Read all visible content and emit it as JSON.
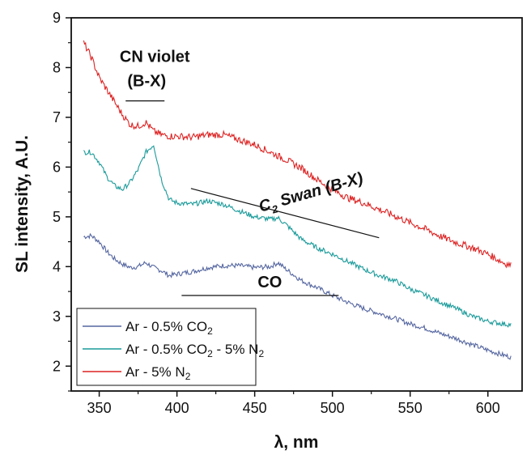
{
  "chart_data": {
    "type": "line",
    "xlabel": "λ, nm",
    "ylabel": "SL intensity, A.U.",
    "xlim": [
      332,
      622
    ],
    "ylim": [
      1.5,
      9
    ],
    "x_ticks": [
      350,
      400,
      450,
      500,
      550,
      600
    ],
    "y_ticks": [
      2,
      3,
      4,
      5,
      6,
      7,
      8,
      9
    ],
    "grid": false,
    "legend_position": "bottom-left",
    "series": [
      {
        "name_parts": [
          "Ar - 0.5% CO",
          "2",
          ""
        ],
        "color": "#5566a0",
        "x": [
          340,
          345,
          350,
          355,
          360,
          365,
          370,
          375,
          380,
          385,
          390,
          395,
          400,
          410,
          420,
          430,
          440,
          450,
          460,
          465,
          470,
          480,
          490,
          500,
          510,
          520,
          530,
          540,
          550,
          560,
          570,
          580,
          590,
          600,
          610,
          615
        ],
        "y": [
          4.6,
          4.62,
          4.5,
          4.3,
          4.15,
          4.05,
          3.98,
          4.0,
          4.08,
          3.98,
          3.92,
          3.82,
          3.85,
          3.9,
          3.98,
          4.02,
          4.02,
          3.98,
          4.0,
          4.08,
          3.95,
          3.72,
          3.58,
          3.42,
          3.28,
          3.16,
          3.06,
          2.96,
          2.85,
          2.76,
          2.65,
          2.55,
          2.43,
          2.32,
          2.22,
          2.18
        ]
      },
      {
        "name_parts": [
          "Ar - 0.5% CO",
          "2",
          " - 5% N",
          "2",
          ""
        ],
        "color": "#1a9a9a",
        "x": [
          340,
          345,
          350,
          355,
          360,
          365,
          370,
          375,
          380,
          385,
          390,
          395,
          400,
          410,
          420,
          430,
          440,
          450,
          460,
          465,
          470,
          480,
          490,
          500,
          510,
          520,
          530,
          540,
          550,
          560,
          570,
          580,
          590,
          600,
          610,
          615
        ],
        "y": [
          6.3,
          6.3,
          6.1,
          5.8,
          5.62,
          5.55,
          5.7,
          5.95,
          6.3,
          6.45,
          5.75,
          5.35,
          5.28,
          5.25,
          5.32,
          5.25,
          5.12,
          5.0,
          4.95,
          4.98,
          4.85,
          4.55,
          4.38,
          4.25,
          4.1,
          3.95,
          3.82,
          3.72,
          3.55,
          3.42,
          3.28,
          3.15,
          3.0,
          2.9,
          2.85,
          2.83
        ]
      },
      {
        "name_parts": [
          "Ar - 5% N",
          "2",
          ""
        ],
        "color": "#dd2222",
        "x": [
          340,
          345,
          350,
          355,
          360,
          365,
          370,
          375,
          380,
          385,
          390,
          395,
          400,
          410,
          420,
          430,
          440,
          450,
          460,
          470,
          480,
          490,
          500,
          510,
          520,
          530,
          540,
          550,
          560,
          570,
          580,
          590,
          600,
          610,
          615
        ],
        "y": [
          8.5,
          8.2,
          7.8,
          7.55,
          7.3,
          7.05,
          6.85,
          6.82,
          6.9,
          6.72,
          6.65,
          6.62,
          6.62,
          6.6,
          6.65,
          6.65,
          6.55,
          6.45,
          6.3,
          6.15,
          5.98,
          5.75,
          5.55,
          5.38,
          5.28,
          5.15,
          5.02,
          4.88,
          4.75,
          4.6,
          4.48,
          4.38,
          4.25,
          4.08,
          4.02
        ]
      }
    ],
    "annotations": [
      {
        "id": "cn",
        "text_lines": [
          "CN violet",
          "(B-X)"
        ],
        "bar_x": [
          367,
          392
        ],
        "bar_y": 7.33
      },
      {
        "id": "c2",
        "text_parts": [
          "C",
          "2",
          " Swan (B-X)"
        ],
        "line_from": [
          409,
          5.57
        ],
        "line_to": [
          530,
          4.58
        ]
      },
      {
        "id": "co",
        "text": "CO",
        "bar_x": [
          403,
          504
        ],
        "bar_y": 3.42
      }
    ]
  }
}
